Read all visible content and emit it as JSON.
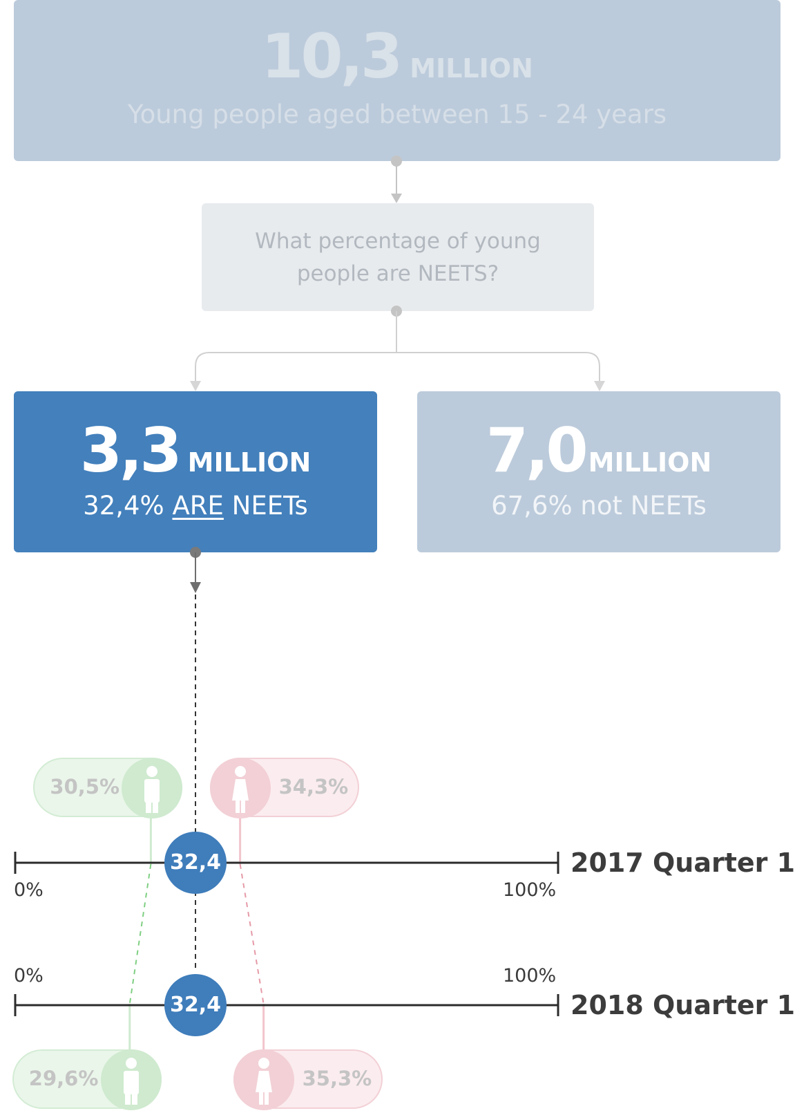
{
  "total": {
    "value": "10,3",
    "unit": "MILLION",
    "caption": "Young people aged between 15 - 24 years"
  },
  "question": {
    "line1": "What percentage of young",
    "line2": "people are NEETS?"
  },
  "neets": {
    "value": "3,3",
    "unit": "MILLION",
    "pct": "32,4%",
    "are": "ARE",
    "label": "NEETs"
  },
  "not_neets": {
    "value": "7,0",
    "unit": "MILLION",
    "caption": "67,6% not NEETs"
  },
  "colors": {
    "neets": "#4380bc",
    "muted_box": "#bccbdb",
    "male": "#cfeacf",
    "female": "#f2d0d6",
    "axis": "#2b2b2b"
  },
  "icons": {
    "male": "male-person-icon",
    "female": "female-person-icon"
  },
  "timeline": [
    {
      "label": "2017 Quarter 1",
      "min_label": "0%",
      "max_label": "100%",
      "total": "32,4",
      "total_value": 32.4,
      "male": "30,5%",
      "male_value": 30.5,
      "female": "34,3%",
      "female_value": 34.3
    },
    {
      "label": "2018 Quarter 1",
      "min_label": "0%",
      "max_label": "100%",
      "total": "32,4",
      "total_value": 32.4,
      "male": "29,6%",
      "male_value": 29.6,
      "female": "35,3%",
      "female_value": 35.3
    }
  ]
}
